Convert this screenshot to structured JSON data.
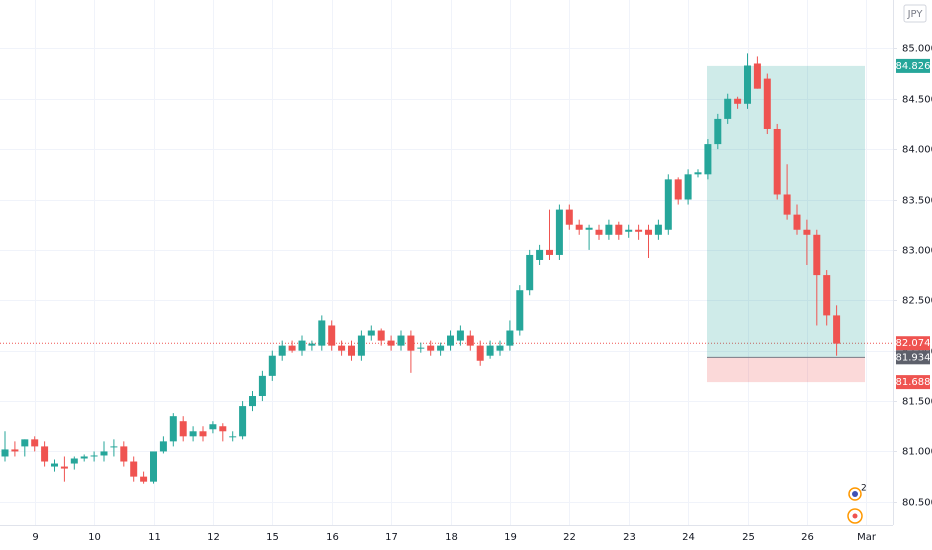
{
  "chart_data": {
    "type": "candlestick",
    "currency": "JPY",
    "categories": [
      null,
      null,
      null,
      "9",
      null,
      null,
      null,
      null,
      null,
      "10",
      null,
      null,
      null,
      null,
      null,
      "11",
      null,
      null,
      null,
      null,
      null,
      "12",
      null,
      null,
      null,
      null,
      null,
      "15",
      null,
      null,
      null,
      null,
      null,
      "16",
      null,
      null,
      null,
      null,
      null,
      "17",
      null,
      null,
      null,
      null,
      null,
      "18",
      null,
      null,
      null,
      null,
      null,
      "19",
      null,
      null,
      null,
      null,
      null,
      "22",
      null,
      null,
      null,
      null,
      null,
      "23",
      null,
      null,
      null,
      null,
      null,
      "24",
      null,
      null,
      null,
      null,
      null,
      "25",
      null,
      null,
      null,
      null,
      null,
      "26",
      null,
      null,
      null,
      null,
      null,
      "Mar"
    ],
    "open": [
      80.95,
      81.02,
      81.05,
      81.12,
      81.05,
      80.85,
      80.85,
      80.88,
      80.93,
      80.95,
      80.96,
      81.05,
      81.05,
      80.9,
      80.75,
      80.7,
      81.0,
      81.1,
      81.3,
      81.15,
      81.2,
      81.22,
      81.25,
      81.15,
      81.15,
      81.45,
      81.55,
      81.75,
      81.95,
      82.05,
      82.0,
      82.05,
      82.05,
      82.25,
      82.05,
      82.05,
      81.95,
      82.15,
      82.2,
      82.1,
      82.05,
      82.15,
      82.02,
      82.05,
      82.0,
      82.05,
      82.1,
      82.15,
      82.05,
      81.95,
      82.0,
      82.05,
      82.2,
      82.6,
      82.9,
      83.0,
      82.95,
      83.4,
      83.25,
      83.2,
      83.2,
      83.15,
      83.25,
      83.18,
      83.2,
      83.2,
      83.15,
      83.2,
      83.7,
      83.5,
      83.75,
      83.75,
      84.05,
      84.3,
      84.5,
      84.45,
      84.85,
      84.7,
      84.2,
      83.55,
      83.35,
      83.2,
      83.15,
      82.75,
      82.35,
      null,
      null,
      null
    ],
    "high": [
      81.2,
      81.1,
      81.12,
      81.15,
      81.1,
      80.92,
      80.95,
      80.95,
      80.97,
      81.0,
      81.1,
      81.12,
      81.1,
      80.95,
      80.8,
      81.0,
      81.15,
      81.38,
      81.35,
      81.25,
      81.25,
      81.3,
      81.28,
      81.2,
      81.5,
      81.6,
      81.8,
      82.0,
      82.1,
      82.1,
      82.15,
      82.1,
      82.35,
      82.3,
      82.1,
      82.1,
      82.2,
      82.25,
      82.22,
      82.15,
      82.2,
      82.2,
      82.08,
      82.1,
      82.08,
      82.2,
      82.25,
      82.2,
      82.1,
      82.1,
      82.1,
      82.3,
      82.65,
      83.0,
      83.05,
      83.4,
      83.45,
      83.45,
      83.3,
      83.25,
      83.25,
      83.3,
      83.28,
      83.25,
      83.25,
      83.25,
      83.3,
      83.75,
      83.72,
      83.8,
      83.8,
      84.1,
      84.35,
      84.55,
      84.52,
      84.95,
      84.92,
      84.75,
      84.25,
      83.85,
      83.45,
      83.3,
      83.2,
      82.8,
      82.45,
      null,
      null,
      null
    ],
    "low": [
      80.9,
      80.95,
      80.95,
      81.0,
      80.85,
      80.8,
      80.7,
      80.82,
      80.9,
      80.9,
      80.9,
      80.95,
      80.85,
      80.7,
      80.68,
      80.68,
      80.98,
      81.05,
      81.1,
      81.1,
      81.1,
      81.18,
      81.1,
      81.1,
      81.12,
      81.4,
      81.5,
      81.7,
      81.9,
      81.98,
      81.95,
      82.0,
      82.0,
      82.0,
      81.95,
      81.9,
      81.9,
      82.1,
      82.05,
      82.0,
      82.0,
      81.78,
      81.98,
      81.95,
      81.95,
      82.0,
      82.05,
      82.0,
      81.85,
      81.92,
      81.95,
      82.0,
      82.15,
      82.55,
      82.85,
      82.9,
      82.9,
      83.2,
      83.15,
      83.0,
      83.1,
      83.1,
      83.1,
      83.12,
      83.1,
      82.92,
      83.1,
      83.15,
      83.45,
      83.45,
      83.72,
      83.7,
      84.0,
      84.25,
      84.4,
      84.4,
      84.6,
      84.15,
      83.5,
      83.3,
      83.15,
      82.85,
      82.25,
      82.25,
      81.95,
      null,
      null,
      null
    ],
    "close": [
      81.02,
      81.0,
      81.12,
      81.05,
      80.9,
      80.88,
      80.83,
      80.93,
      80.95,
      80.96,
      81.0,
      81.05,
      80.9,
      80.75,
      80.7,
      81.0,
      81.1,
      81.35,
      81.15,
      81.2,
      81.15,
      81.27,
      81.2,
      81.15,
      81.45,
      81.55,
      81.75,
      81.95,
      82.05,
      82.0,
      82.1,
      82.07,
      82.3,
      82.05,
      82.0,
      81.95,
      82.15,
      82.2,
      82.1,
      82.05,
      82.15,
      82.0,
      82.03,
      82.0,
      82.05,
      82.15,
      82.2,
      82.05,
      81.9,
      82.05,
      82.05,
      82.2,
      82.6,
      82.95,
      83.0,
      82.95,
      83.4,
      83.25,
      83.2,
      83.22,
      83.15,
      83.25,
      83.15,
      83.2,
      83.18,
      83.15,
      83.25,
      83.7,
      83.5,
      83.75,
      83.77,
      84.05,
      84.3,
      84.5,
      84.45,
      84.83,
      84.6,
      84.2,
      83.55,
      83.35,
      83.2,
      83.15,
      82.75,
      82.35,
      82.07,
      null,
      null,
      null
    ],
    "up_color": "#26a69a",
    "down_color": "#ef5350",
    "ylim": [
      80.27,
      85.48
    ],
    "yticks": [
      {
        "value": 80.5,
        "label": "80.500"
      },
      {
        "value": 81,
        "label": "81.000"
      },
      {
        "value": 81.5,
        "label": "81.500"
      },
      {
        "value": 82,
        "label": "82.000"
      },
      {
        "value": 82.5,
        "label": "82.500"
      },
      {
        "value": 83,
        "label": "83.000"
      },
      {
        "value": 83.5,
        "label": "83.500"
      },
      {
        "value": 84,
        "label": "84.000"
      },
      {
        "value": 84.5,
        "label": "84.500"
      },
      {
        "value": 85,
        "label": "85.000"
      }
    ],
    "grid": true,
    "current_price": 82.074,
    "position": {
      "target": 84.826,
      "entry": 81.934,
      "stop": 81.688
    },
    "alert_count": "2"
  }
}
